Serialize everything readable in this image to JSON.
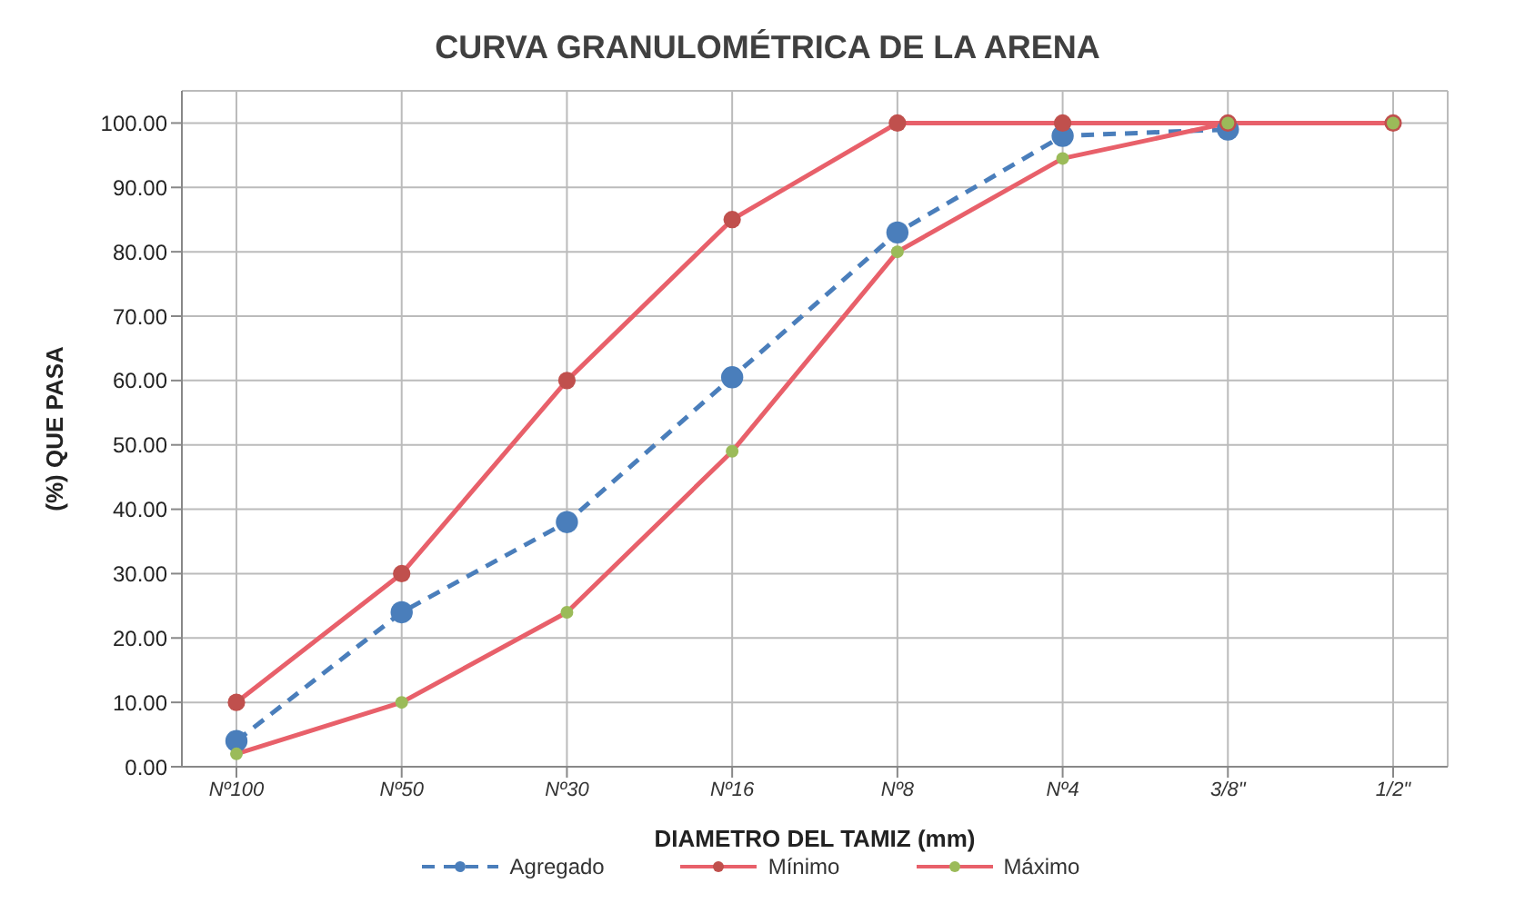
{
  "chart_data": {
    "type": "line",
    "title": "CURVA GRANULOMÉTRICA DE LA ARENA",
    "xlabel": "DIAMETRO DEL TAMIZ  (mm)",
    "ylabel": "(%) QUE PASA",
    "categories": [
      "Nº100",
      "Nº50",
      "Nº30",
      "Nº16",
      "Nº8",
      "Nº4",
      "3/8\"",
      "1/2\""
    ],
    "ylim": [
      0,
      105
    ],
    "yticks": [
      {
        "value": 0,
        "label": "0.00"
      },
      {
        "value": 10,
        "label": "10.00"
      },
      {
        "value": 20,
        "label": "20.00"
      },
      {
        "value": 30,
        "label": "30.00"
      },
      {
        "value": 40,
        "label": "40.00"
      },
      {
        "value": 50,
        "label": "50.00"
      },
      {
        "value": 60,
        "label": "60.00"
      },
      {
        "value": 70,
        "label": "70.00"
      },
      {
        "value": 80,
        "label": "80.00"
      },
      {
        "value": 90,
        "label": "90.00"
      },
      {
        "value": 100,
        "label": "100.00"
      }
    ],
    "grid": true,
    "legend": "bottom",
    "marker": "circle",
    "series": [
      {
        "name": "Agregado",
        "color": "#4a7ebb",
        "line_style": "dashed",
        "values": [
          4,
          24,
          38,
          60.5,
          83,
          98,
          99,
          null
        ]
      },
      {
        "name": "Mínimo",
        "color": "#e8606a",
        "colors": [
          "#c0504d",
          "#c0504d",
          "#c0504d",
          "#c0504d",
          "#c0504d",
          "#c0504d",
          "#c0504d",
          "#c0504d"
        ],
        "line_style": "solid",
        "values": [
          10,
          30,
          60,
          85,
          100,
          100,
          100,
          100
        ]
      },
      {
        "name": "Máximo",
        "color": "#e8606a",
        "colors": [
          "#9bbb59",
          "#9bbb59",
          "#9bbb59",
          "#9bbb59",
          "#9bbb59",
          "#9bbb59",
          "#9bbb59",
          "#9bbb59"
        ],
        "line_style": "solid",
        "values": [
          2,
          10,
          24,
          49,
          80,
          94.5,
          100,
          100
        ]
      }
    ]
  }
}
